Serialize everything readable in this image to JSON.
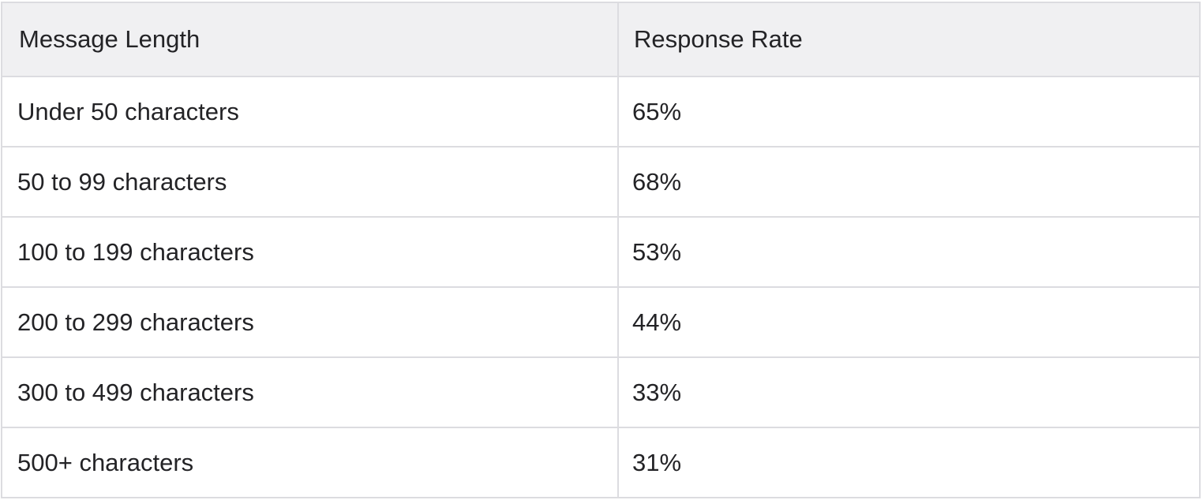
{
  "table": {
    "headers": [
      "Message Length",
      "Response Rate"
    ],
    "rows": [
      [
        "Under 50 characters",
        "65%"
      ],
      [
        "50 to 99 characters",
        "68%"
      ],
      [
        "100 to 199 characters",
        "53%"
      ],
      [
        "200 to 299 characters",
        "44%"
      ],
      [
        "300 to 499 characters",
        "33%"
      ],
      [
        "500+ characters",
        "31%"
      ]
    ]
  },
  "colors": {
    "header_bg": "#f0f0f2",
    "border": "#dcdce0",
    "text": "#232326"
  }
}
